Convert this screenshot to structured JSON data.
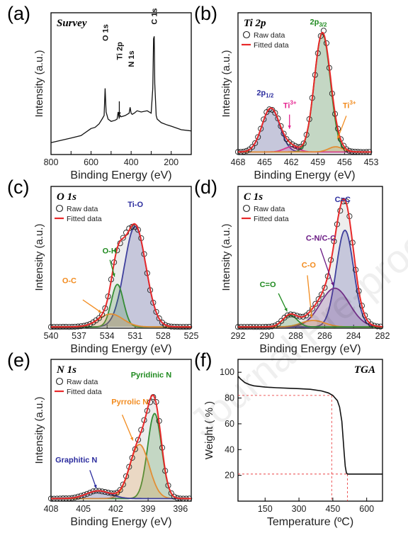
{
  "watermark": "Journal Pre-proof",
  "colors": {
    "fit": "#e8292a",
    "raw": "#222222",
    "ti4": "#2b2c9e",
    "ti3": "#e5258f",
    "tisat": "#f28b1e",
    "o_tio": "#2b2c9e",
    "o_oh": "#1f8a1f",
    "o_oc": "#f28b1e",
    "c_cc": "#2b2c9e",
    "c_cn": "#6a1a84",
    "c_co": "#f28b1e",
    "c_c0": "#1f8a1f",
    "n_pyd": "#1f8a1f",
    "n_pyr": "#f28b1e",
    "n_gra": "#2b2c9e",
    "tga": "#111111",
    "ref": "#e8292a"
  },
  "chart_data": [
    {
      "id": "a",
      "type": "line",
      "letter": "(a)",
      "title": "Survey",
      "xlabel": "Binding Energy (eV)",
      "ylabel": "Intensity (a.u.)",
      "xlim": [
        800,
        100
      ],
      "ylim": [
        0,
        120
      ],
      "xticks": [
        800,
        700,
        600,
        500,
        400,
        300,
        200,
        100
      ],
      "xtick_labels": [
        "800",
        "",
        "600",
        "",
        "400",
        "",
        "200",
        ""
      ],
      "series": [
        {
          "x": [
            800,
            750,
            700,
            650,
            600,
            580,
            560,
            545,
            535,
            530,
            525,
            520,
            515,
            500,
            480,
            470,
            465,
            460,
            455,
            450,
            430,
            410,
            405,
            400,
            395,
            385,
            370,
            350,
            320,
            300,
            292,
            288,
            285,
            282,
            275,
            270,
            250,
            220,
            200,
            150,
            100
          ],
          "y": [
            10,
            12,
            14,
            16,
            22,
            23,
            26,
            30,
            33,
            56,
            36,
            33,
            30,
            28,
            29,
            30,
            36,
            31,
            33,
            32,
            33,
            35,
            40,
            35,
            34,
            35,
            37,
            36,
            37,
            35,
            56,
            98,
            100,
            60,
            33,
            30,
            27,
            25,
            24,
            21,
            20
          ]
        }
      ],
      "annotations": [
        {
          "text": "O 1s",
          "x": 530
        },
        {
          "text": "Ti 2p",
          "x": 459
        },
        {
          "text": "N 1s",
          "x": 400
        },
        {
          "text": "C 1s",
          "x": 285
        }
      ]
    },
    {
      "id": "b",
      "type": "line",
      "letter": "(b)",
      "title": "Ti 2p",
      "xlabel": "Binding Energy (eV)",
      "ylabel": "Intensity (a.u.)",
      "xlim": [
        468,
        453
      ],
      "ylim": [
        0,
        110
      ],
      "xticks": [
        468,
        465,
        462,
        459,
        456,
        453
      ],
      "xtick_labels": [
        "468",
        "465",
        "462",
        "459",
        "456",
        "453"
      ],
      "legend": [
        "Raw data",
        "Fitted data"
      ],
      "labels": {
        "ti4_low": "2p",
        "ti4_low_sub": "1/2",
        "ti4_high": "2p",
        "ti4_high_sub": "3/2",
        "ti3_a": "Ti",
        "ti3_a_sup": "3+",
        "ti3_b": "Ti",
        "ti3_b_sup": "3+"
      },
      "peaks": [
        {
          "name": "Ti 2p1/2",
          "center": 464.3,
          "height": 34,
          "width": 1.0
        },
        {
          "name": "Ti 2p3/2",
          "center": 458.5,
          "height": 92,
          "width": 0.9
        },
        {
          "name": "Ti3+ a",
          "center": 462.0,
          "height": 4,
          "width": 0.8
        },
        {
          "name": "Ti3+ b",
          "center": 457.0,
          "height": 4,
          "width": 0.8
        }
      ],
      "baseline": 2
    },
    {
      "id": "c",
      "type": "line",
      "letter": "(c)",
      "title": "O 1s",
      "xlabel": "Binding Energy (eV)",
      "ylabel": "Intensity (a.u.)",
      "xlim": [
        540,
        525
      ],
      "ylim": [
        0,
        110
      ],
      "xticks": [
        540,
        537,
        534,
        531,
        528,
        525
      ],
      "xtick_labels": [
        "540",
        "537",
        "534",
        "531",
        "528",
        "525"
      ],
      "legend": [
        "Raw data",
        "Fitted data"
      ],
      "labels": {
        "tio": "Ti-O",
        "oh": "O-H",
        "oc": "O-C"
      },
      "peaks": [
        {
          "name": "Ti-O",
          "center": 531.0,
          "height": 78,
          "width": 1.15
        },
        {
          "name": "O-H",
          "center": 532.9,
          "height": 33,
          "width": 0.65
        },
        {
          "name": "O-C",
          "center": 533.6,
          "height": 10,
          "width": 1.3
        }
      ],
      "baseline": 1
    },
    {
      "id": "d",
      "type": "line",
      "letter": "(d)",
      "title": "C 1s",
      "xlabel": "Binding Energy (eV)",
      "ylabel": "Intensity (a.u.)",
      "xlim": [
        292,
        282
      ],
      "ylim": [
        0,
        110
      ],
      "xticks": [
        292,
        290,
        288,
        286,
        284,
        282
      ],
      "xtick_labels": [
        "292",
        "290",
        "288",
        "286",
        "284",
        "282"
      ],
      "legend": [
        "Raw data",
        "Fitted data"
      ],
      "labels": {
        "cc": "C=C",
        "cn": "C-N/C-C",
        "co": "C-O",
        "c0": "C=O"
      },
      "peaks": [
        {
          "name": "C=C",
          "center": 284.6,
          "height": 75,
          "width": 0.6
        },
        {
          "name": "C-N/C-C",
          "center": 285.3,
          "height": 30,
          "width": 1.0
        },
        {
          "name": "C-O",
          "center": 286.8,
          "height": 5,
          "width": 0.8
        },
        {
          "name": "C=O",
          "center": 288.4,
          "height": 9,
          "width": 0.5
        }
      ],
      "baseline": 1
    },
    {
      "id": "e",
      "type": "line",
      "letter": "(e)",
      "title": "N 1s",
      "xlabel": "Binding Energy (eV)",
      "ylabel": "Intensity (a.u.)",
      "xlim": [
        408,
        395
      ],
      "ylim": [
        0,
        110
      ],
      "xticks": [
        408,
        405,
        402,
        399,
        396
      ],
      "xtick_labels": [
        "408",
        "405",
        "402",
        "399",
        "396"
      ],
      "legend": [
        "Raw data",
        "Fitted data"
      ],
      "labels": {
        "pyd": "Pyridinic N",
        "pyr": "Pyrrolic N",
        "gra": "Graphitic N"
      },
      "peaks": [
        {
          "name": "Pyridinic N",
          "center": 398.4,
          "height": 66,
          "width": 0.65
        },
        {
          "name": "Pyrrolic N",
          "center": 399.8,
          "height": 42,
          "width": 0.9
        },
        {
          "name": "Graphitic N",
          "center": 403.6,
          "height": 6,
          "width": 1.1
        }
      ],
      "baseline": 2
    },
    {
      "id": "f",
      "type": "line",
      "letter": "(f)",
      "title": "TGA",
      "xlabel": "Temperature (ºC)",
      "ylabel": "Weight ( % )",
      "xlim": [
        30,
        670
      ],
      "ylim": [
        0,
        110
      ],
      "xticks": [
        150,
        300,
        450,
        600
      ],
      "xtick_labels": [
        "150",
        "300",
        "450",
        "600"
      ],
      "yticks": [
        20,
        40,
        60,
        80,
        100
      ],
      "ytick_labels": [
        "20",
        "40",
        "60",
        "80",
        "100"
      ],
      "series": [
        {
          "x": [
            30,
            40,
            60,
            80,
            100,
            150,
            200,
            250,
            300,
            350,
            400,
            430,
            450,
            470,
            480,
            490,
            495,
            500,
            505,
            510,
            515,
            520,
            560,
            620,
            670
          ],
          "y": [
            97,
            95,
            92,
            90.5,
            89.5,
            88.5,
            88,
            87.6,
            87.3,
            86.8,
            85.5,
            84,
            82,
            78,
            73,
            62,
            50,
            38,
            27,
            22,
            21,
            21,
            21,
            21,
            21
          ]
        }
      ],
      "reference_lines": [
        {
          "x": 445,
          "y": 82
        },
        {
          "x": 515,
          "y": 21
        }
      ]
    }
  ]
}
